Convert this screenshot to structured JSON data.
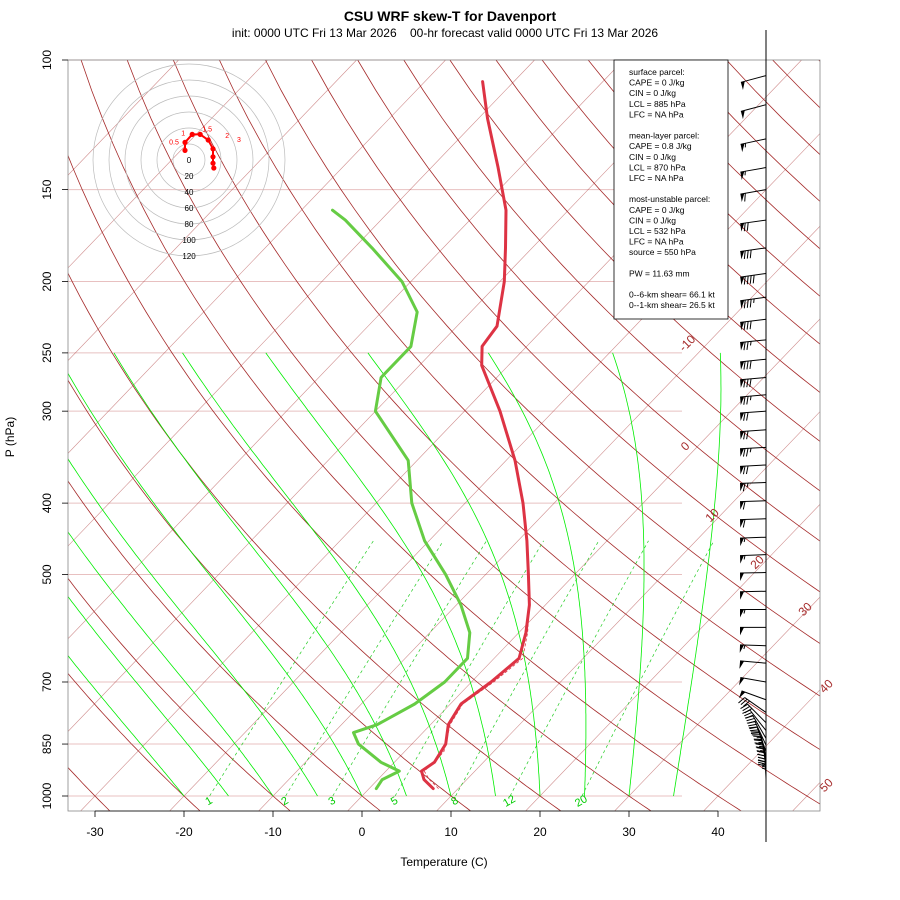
{
  "chart_data": {
    "type": "line",
    "title": "CSU WRF skew-T for Davenport",
    "subtitle": "init: 0000 UTC Fri 13 Mar 2026    00-hr forecast valid 0000 UTC Fri 13 Mar 2026",
    "xlabel": "Temperature (C)",
    "ylabel": "P (hPa)",
    "x_ticks": [
      -30,
      -20,
      -10,
      0,
      10,
      20,
      30,
      40
    ],
    "y_ticks": [
      100,
      150,
      200,
      250,
      300,
      400,
      500,
      700,
      850,
      1000
    ],
    "isotherm_labels": [
      -10,
      0,
      10,
      20,
      30,
      40,
      50
    ],
    "mixing_ratio_labels": [
      "1",
      "2",
      "3",
      "5",
      "8",
      "12",
      "20"
    ],
    "series": [
      {
        "name": "temperature",
        "color": "#dd3344",
        "points": [
          {
            "p": 977,
            "t": 7.2
          },
          {
            "p": 950,
            "t": 5.2
          },
          {
            "p": 925,
            "t": 4.0
          },
          {
            "p": 900,
            "t": 4.5
          },
          {
            "p": 850,
            "t": 3.8
          },
          {
            "p": 800,
            "t": 2.0
          },
          {
            "p": 750,
            "t": 1.2
          },
          {
            "p": 700,
            "t": 2.2
          },
          {
            "p": 650,
            "t": 2.8
          },
          {
            "p": 600,
            "t": 0.8
          },
          {
            "p": 550,
            "t": -1.8
          },
          {
            "p": 500,
            "t": -5.2
          },
          {
            "p": 450,
            "t": -9.0
          },
          {
            "p": 400,
            "t": -13.5
          },
          {
            "p": 350,
            "t": -19.0
          },
          {
            "p": 300,
            "t": -26.0
          },
          {
            "p": 260,
            "t": -33.0
          },
          {
            "p": 245,
            "t": -35.0
          },
          {
            "p": 230,
            "t": -35.5
          },
          {
            "p": 200,
            "t": -39.5
          },
          {
            "p": 180,
            "t": -43.0
          },
          {
            "p": 160,
            "t": -47.0
          },
          {
            "p": 140,
            "t": -52.5
          },
          {
            "p": 120,
            "t": -59.0
          },
          {
            "p": 107,
            "t": -63.5
          }
        ]
      },
      {
        "name": "dewpoint",
        "color": "#66cc44",
        "points": [
          {
            "p": 977,
            "t": 0.8
          },
          {
            "p": 950,
            "t": 0.5
          },
          {
            "p": 925,
            "t": 1.5
          },
          {
            "p": 900,
            "t": -1.5
          },
          {
            "p": 850,
            "t": -6.0
          },
          {
            "p": 820,
            "t": -7.8
          },
          {
            "p": 800,
            "t": -6.0
          },
          {
            "p": 750,
            "t": -4.0
          },
          {
            "p": 700,
            "t": -3.0
          },
          {
            "p": 650,
            "t": -3.0
          },
          {
            "p": 600,
            "t": -5.5
          },
          {
            "p": 550,
            "t": -9.5
          },
          {
            "p": 500,
            "t": -14.5
          },
          {
            "p": 450,
            "t": -20.5
          },
          {
            "p": 400,
            "t": -26.0
          },
          {
            "p": 350,
            "t": -31.0
          },
          {
            "p": 300,
            "t": -40.0
          },
          {
            "p": 270,
            "t": -43.0
          },
          {
            "p": 245,
            "t": -43.0
          },
          {
            "p": 220,
            "t": -46.0
          },
          {
            "p": 200,
            "t": -51.0
          },
          {
            "p": 180,
            "t": -58.0
          },
          {
            "p": 165,
            "t": -64.0
          },
          {
            "p": 160,
            "t": -66.5
          }
        ]
      }
    ],
    "parcel": {
      "name": "parcel",
      "style": "dashed",
      "points": [
        {
          "p": 977,
          "t": 7.8
        },
        {
          "p": 950,
          "t": 5.8
        },
        {
          "p": 925,
          "t": 4.3
        },
        {
          "p": 900,
          "t": 4.5
        },
        {
          "p": 870,
          "t": 4.4
        },
        {
          "p": 850,
          "t": 3.8
        },
        {
          "p": 800,
          "t": 2.2
        },
        {
          "p": 750,
          "t": 1.4
        },
        {
          "p": 700,
          "t": 2.5
        },
        {
          "p": 650,
          "t": 3.2
        },
        {
          "p": 600,
          "t": 1.0
        },
        {
          "p": 550,
          "t": -1.8
        }
      ]
    },
    "hodograph": {
      "ring_labels": [
        "0",
        "20",
        "40",
        "60",
        "80",
        "100",
        "120"
      ],
      "point_labels": [
        "0.5",
        "1",
        "1.5",
        "2",
        "3"
      ],
      "points_kt": [
        {
          "u": -5,
          "v": 12
        },
        {
          "u": -5,
          "v": 22
        },
        {
          "u": 4,
          "v": 32
        },
        {
          "u": 14,
          "v": 32
        },
        {
          "u": 24,
          "v": 25
        },
        {
          "u": 30,
          "v": 14
        },
        {
          "u": 30,
          "v": 4
        },
        {
          "u": 30,
          "v": -4
        },
        {
          "u": 31,
          "v": -10
        }
      ]
    },
    "wind_barbs": [
      {
        "p": 105,
        "dir": 255,
        "spd": 50
      },
      {
        "p": 115,
        "dir": 255,
        "spd": 50
      },
      {
        "p": 128,
        "dir": 258,
        "spd": 55
      },
      {
        "p": 140,
        "dir": 260,
        "spd": 55
      },
      {
        "p": 150,
        "dir": 260,
        "spd": 60
      },
      {
        "p": 165,
        "dir": 262,
        "spd": 70
      },
      {
        "p": 180,
        "dir": 262,
        "spd": 80
      },
      {
        "p": 195,
        "dir": 262,
        "spd": 90
      },
      {
        "p": 210,
        "dir": 262,
        "spd": 85
      },
      {
        "p": 225,
        "dir": 263,
        "spd": 80
      },
      {
        "p": 240,
        "dir": 264,
        "spd": 75
      },
      {
        "p": 255,
        "dir": 264,
        "spd": 80
      },
      {
        "p": 270,
        "dir": 265,
        "spd": 80
      },
      {
        "p": 285,
        "dir": 265,
        "spd": 75
      },
      {
        "p": 300,
        "dir": 266,
        "spd": 70
      },
      {
        "p": 318,
        "dir": 266,
        "spd": 70
      },
      {
        "p": 336,
        "dir": 267,
        "spd": 75
      },
      {
        "p": 355,
        "dir": 267,
        "spd": 70
      },
      {
        "p": 375,
        "dir": 268,
        "spd": 65
      },
      {
        "p": 397,
        "dir": 268,
        "spd": 60
      },
      {
        "p": 420,
        "dir": 268,
        "spd": 60
      },
      {
        "p": 445,
        "dir": 268,
        "spd": 55
      },
      {
        "p": 470,
        "dir": 268,
        "spd": 55
      },
      {
        "p": 497,
        "dir": 269,
        "spd": 50
      },
      {
        "p": 527,
        "dir": 269,
        "spd": 50
      },
      {
        "p": 558,
        "dir": 270,
        "spd": 55
      },
      {
        "p": 590,
        "dir": 270,
        "spd": 50
      },
      {
        "p": 625,
        "dir": 272,
        "spd": 55
      },
      {
        "p": 660,
        "dir": 275,
        "spd": 50
      },
      {
        "p": 700,
        "dir": 280,
        "spd": 50
      },
      {
        "p": 740,
        "dir": 290,
        "spd": 50
      },
      {
        "p": 770,
        "dir": 305,
        "spd": 30
      },
      {
        "p": 795,
        "dir": 315,
        "spd": 30
      },
      {
        "p": 815,
        "dir": 322,
        "spd": 30
      },
      {
        "p": 835,
        "dir": 330,
        "spd": 30
      },
      {
        "p": 853,
        "dir": 335,
        "spd": 30
      },
      {
        "p": 870,
        "dir": 340,
        "spd": 30
      },
      {
        "p": 885,
        "dir": 345,
        "spd": 25
      },
      {
        "p": 900,
        "dir": 350,
        "spd": 25
      },
      {
        "p": 912,
        "dir": 352,
        "spd": 25
      },
      {
        "p": 925,
        "dir": 355,
        "spd": 25
      },
      {
        "p": 937,
        "dir": 357,
        "spd": 20
      },
      {
        "p": 948,
        "dir": 358,
        "spd": 20
      },
      {
        "p": 958,
        "dir": 0,
        "spd": 20
      },
      {
        "p": 967,
        "dir": 0,
        "spd": 20
      },
      {
        "p": 975,
        "dir": 0,
        "spd": 15
      },
      {
        "p": 982,
        "dir": 0,
        "spd": 15
      },
      {
        "p": 988,
        "dir": 0,
        "spd": 15
      }
    ],
    "legend_placement": "top-right",
    "grid": true
  },
  "indices": {
    "lines": [
      "surface parcel:",
      "CAPE = 0 J/kg",
      "CIN = 0 J/kg",
      "LCL = 885 hPa",
      "LFC = NA hPa",
      "",
      "mean-layer parcel:",
      "CAPE = 0.8 J/kg",
      "CIN = 0 J/kg",
      "LCL = 870 hPa",
      "LFC = NA hPa",
      "",
      "most-unstable parcel:",
      "CAPE = 0 J/kg",
      "CIN = 0 J/kg",
      "LCL = 532 hPa",
      "LFC = NA hPa",
      "source = 550 hPa",
      "",
      "PW =  11.63 mm",
      "",
      "0--6-km shear= 66.1 kt",
      "0--1-km shear= 26.5 kt"
    ]
  },
  "colors": {
    "isotherm": "#a52a2a",
    "isobar": "#e8c0c0",
    "dry_adiabat": "#a52a2a",
    "moist_adiabat": "#00ee00",
    "mixing_ratio": "#22cc22",
    "temperature": "#dd3344",
    "dewpoint": "#66cc44",
    "hodograph": "#ff0000"
  }
}
